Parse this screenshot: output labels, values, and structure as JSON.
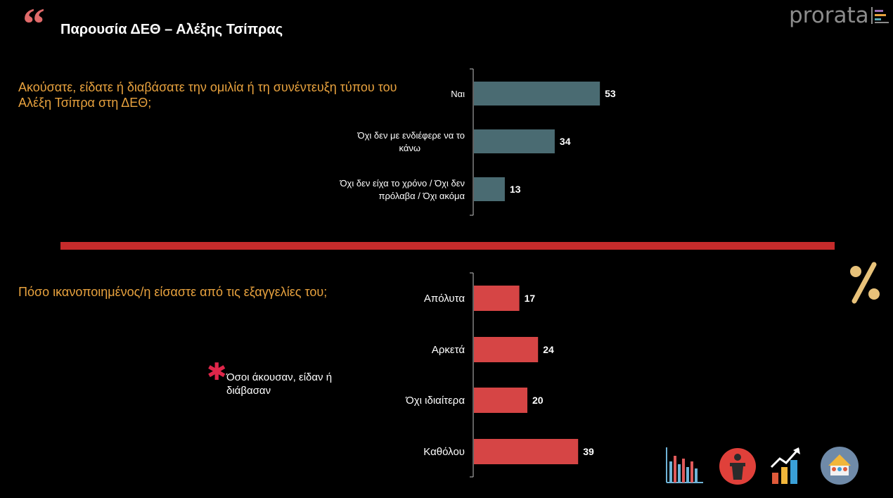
{
  "header": {
    "quote_glyph": "“",
    "title": "Παρουσία ΔΕΘ – Αλέξης Τσίπρας",
    "logo_text": "prorata"
  },
  "question_1": {
    "text": "Ακούσατε, είδατε ή διαβάσατε την ομιλία ή τη συνέντευξη τύπου του Αλέξη Τσίπρα στη ΔΕΘ;"
  },
  "question_2": {
    "text": "Πόσο ικανοποιημένος/η είσαστε από τις εξαγγελίες του;"
  },
  "note": {
    "asterisk": "✱",
    "text": "Όσοι άκουσαν, είδαν ή διάβασαν"
  },
  "icons": {
    "percent": "percent-icon",
    "footer": [
      "bar-chart-icon",
      "podium-icon",
      "growth-chart-icon",
      "house-people-icon"
    ]
  },
  "colors": {
    "background": "#000000",
    "question": "#e8a23e",
    "divider": "#c52b2b",
    "chart1_bar": "#4a6b72",
    "chart2_bar": "#d64545"
  },
  "chart_data": [
    {
      "type": "bar",
      "orientation": "horizontal",
      "categories": [
        [
          "Ναι"
        ],
        [
          "Όχι δεν με ενδιέφερε να το",
          "κάνω"
        ],
        [
          "Όχι δεν είχα το χρόνο / Όχι δεν",
          "πρόλαβα / Όχι ακόμα"
        ]
      ],
      "values": [
        53,
        34,
        13
      ],
      "value_labels": [
        "53",
        "34",
        "13"
      ],
      "color": "#4a6b72",
      "xlim": [
        0,
        100
      ],
      "grid": false
    },
    {
      "type": "bar",
      "orientation": "horizontal",
      "categories": [
        [
          "Απόλυτα"
        ],
        [
          "Αρκετά"
        ],
        [
          "Όχι ιδιαίτερα"
        ],
        [
          "Καθόλου"
        ]
      ],
      "values": [
        17,
        24,
        20,
        39
      ],
      "value_labels": [
        "17",
        "24",
        "20",
        "39"
      ],
      "color": "#d64545",
      "xlim": [
        0,
        100
      ],
      "grid": false
    }
  ]
}
